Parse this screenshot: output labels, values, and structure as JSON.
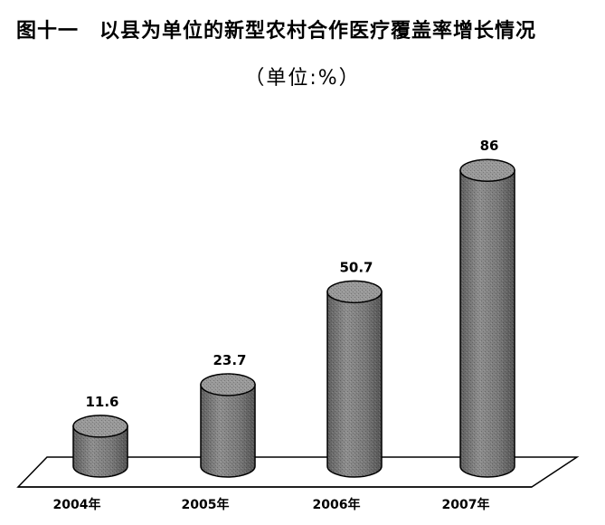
{
  "chart_data": {
    "type": "bar",
    "title": "图十一　以县为单位的新型农村合作医疗覆盖率增长情况",
    "subtitle": "（单位:%）",
    "categories": [
      "2004年",
      "2005年",
      "2006年",
      "2007年"
    ],
    "values": [
      11.6,
      23.7,
      50.7,
      86
    ],
    "value_labels": [
      "11.6",
      "23.7",
      "50.7",
      "86"
    ],
    "ylim": [
      0,
      100
    ],
    "grid": false,
    "legend": "none",
    "style": "3d-cylinder"
  },
  "colors": {
    "bar_fill": "#7c7c7c",
    "bar_top": "#9a9a9a",
    "floor_fill": "#ffffff",
    "outline": "#000000"
  }
}
